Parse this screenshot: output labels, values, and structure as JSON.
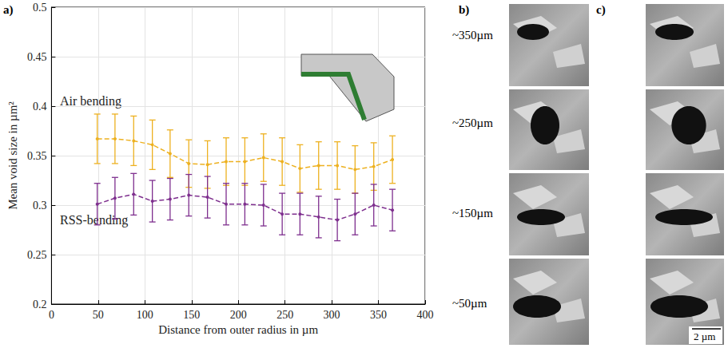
{
  "chart_data": {
    "type": "line",
    "panel_label": "a)",
    "xlabel": "Distance from outer radius in µm",
    "ylabel": "Mean void size in µm²",
    "xlim": [
      0,
      400
    ],
    "xticks": [
      0,
      50,
      100,
      150,
      200,
      250,
      300,
      350,
      400
    ],
    "ylim": [
      0.2,
      0.5
    ],
    "yticks": [
      0.2,
      0.25,
      0.3,
      0.35,
      0.4,
      0.45,
      0.5
    ],
    "grid": true,
    "line_style": "dashed",
    "marker": "circle",
    "x": [
      49,
      68,
      88,
      108,
      127,
      147,
      167,
      187,
      207,
      227,
      247,
      266,
      286,
      306,
      325,
      345,
      365
    ],
    "series": [
      {
        "name": "Air bending",
        "color": "#EDB120",
        "values": [
          0.367,
          0.367,
          0.365,
          0.361,
          0.352,
          0.342,
          0.341,
          0.344,
          0.344,
          0.348,
          0.344,
          0.337,
          0.34,
          0.34,
          0.336,
          0.339,
          0.346
        ],
        "errors": [
          0.025,
          0.025,
          0.025,
          0.025,
          0.024,
          0.024,
          0.024,
          0.024,
          0.024,
          0.024,
          0.024,
          0.024,
          0.024,
          0.024,
          0.024,
          0.024,
          0.024
        ]
      },
      {
        "name": "RSS-bending",
        "color": "#7E2F8E",
        "values": [
          0.301,
          0.307,
          0.311,
          0.304,
          0.306,
          0.31,
          0.308,
          0.301,
          0.301,
          0.3,
          0.291,
          0.291,
          0.288,
          0.285,
          0.291,
          0.3,
          0.295
        ],
        "errors": [
          0.021,
          0.021,
          0.021,
          0.021,
          0.021,
          0.021,
          0.021,
          0.021,
          0.021,
          0.021,
          0.021,
          0.021,
          0.021,
          0.021,
          0.021,
          0.021,
          0.021
        ]
      }
    ]
  },
  "micrographs": {
    "b": {
      "label": "b)",
      "rows": [
        "~350µm",
        "~250µm",
        "~150µm",
        "~50µm"
      ]
    },
    "c": {
      "label": "c)",
      "scale_bar": "2 µm"
    }
  }
}
